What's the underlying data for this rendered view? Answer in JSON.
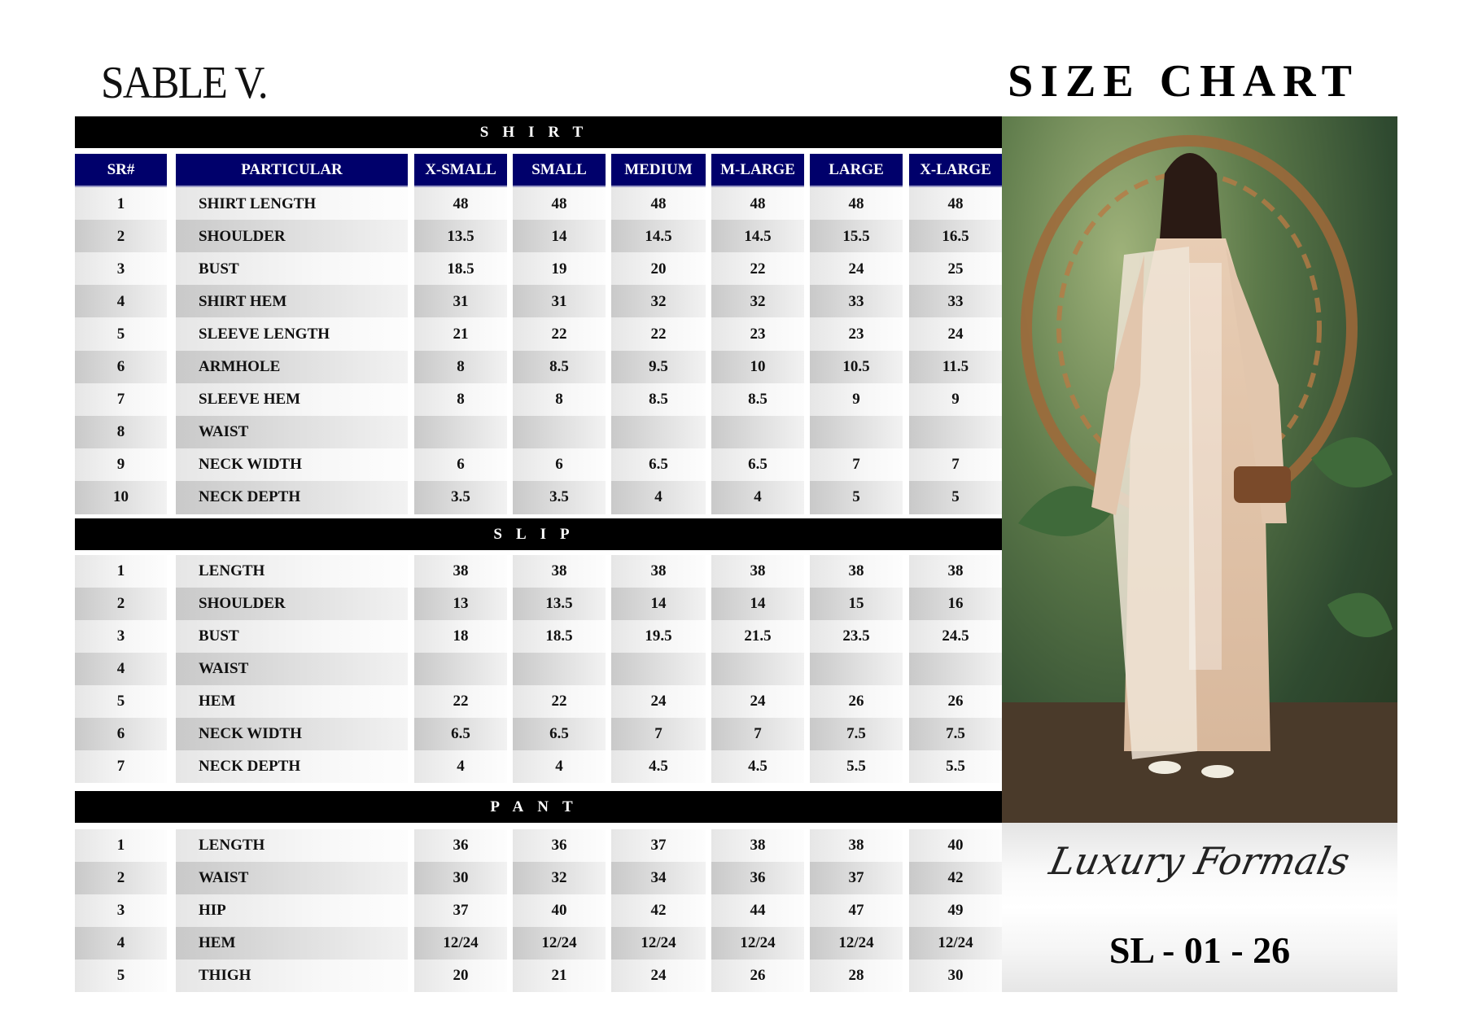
{
  "brand": "SABLE V.",
  "title": "SIZE CHART",
  "columns": [
    "SR#",
    "PARTICULAR",
    "X-SMALL",
    "SMALL",
    "MEDIUM",
    "M-LARGE",
    "LARGE",
    "X-LARGE"
  ],
  "sections": [
    {
      "name": "SHIRT",
      "rows": [
        [
          "1",
          "SHIRT LENGTH",
          "48",
          "48",
          "48",
          "48",
          "48",
          "48"
        ],
        [
          "2",
          "SHOULDER",
          "13.5",
          "14",
          "14.5",
          "14.5",
          "15.5",
          "16.5"
        ],
        [
          "3",
          "BUST",
          "18.5",
          "19",
          "20",
          "22",
          "24",
          "25"
        ],
        [
          "4",
          "SHIRT HEM",
          "31",
          "31",
          "32",
          "32",
          "33",
          "33"
        ],
        [
          "5",
          "SLEEVE LENGTH",
          "21",
          "22",
          "22",
          "23",
          "23",
          "24"
        ],
        [
          "6",
          "ARMHOLE",
          "8",
          "8.5",
          "9.5",
          "10",
          "10.5",
          "11.5"
        ],
        [
          "7",
          "SLEEVE HEM",
          "8",
          "8",
          "8.5",
          "8.5",
          "9",
          "9"
        ],
        [
          "8",
          "WAIST",
          "",
          "",
          "",
          "",
          "",
          ""
        ],
        [
          "9",
          "NECK WIDTH",
          "6",
          "6",
          "6.5",
          "6.5",
          "7",
          "7"
        ],
        [
          "10",
          "NECK DEPTH",
          "3.5",
          "3.5",
          "4",
          "4",
          "5",
          "5"
        ]
      ]
    },
    {
      "name": "SLIP",
      "rows": [
        [
          "1",
          "LENGTH",
          "38",
          "38",
          "38",
          "38",
          "38",
          "38"
        ],
        [
          "2",
          "SHOULDER",
          "13",
          "13.5",
          "14",
          "14",
          "15",
          "16"
        ],
        [
          "3",
          "BUST",
          "18",
          "18.5",
          "19.5",
          "21.5",
          "23.5",
          "24.5"
        ],
        [
          "4",
          "WAIST",
          "",
          "",
          "",
          "",
          "",
          ""
        ],
        [
          "5",
          "HEM",
          "22",
          "22",
          "24",
          "24",
          "26",
          "26"
        ],
        [
          "6",
          "NECK WIDTH",
          "6.5",
          "6.5",
          "7",
          "7",
          "7.5",
          "7.5"
        ],
        [
          "7",
          "NECK DEPTH",
          "4",
          "4",
          "4.5",
          "4.5",
          "5.5",
          "5.5"
        ]
      ]
    },
    {
      "name": "PANT",
      "rows": [
        [
          "1",
          "LENGTH",
          "36",
          "36",
          "37",
          "38",
          "38",
          "40"
        ],
        [
          "2",
          "WAIST",
          "30",
          "32",
          "34",
          "36",
          "37",
          "42"
        ],
        [
          "3",
          "HIP",
          "37",
          "40",
          "42",
          "44",
          "47",
          "49"
        ],
        [
          "4",
          "HEM",
          "12/24",
          "12/24",
          "12/24",
          "12/24",
          "12/24",
          "12/24"
        ],
        [
          "5",
          "THIGH",
          "20",
          "21",
          "24",
          "26",
          "28",
          "30"
        ]
      ]
    }
  ],
  "collection": "Luxury Formals",
  "article_code": "SL - 01 - 26",
  "colors": {
    "header_bar": "#000000",
    "column_header": "#00006b"
  }
}
